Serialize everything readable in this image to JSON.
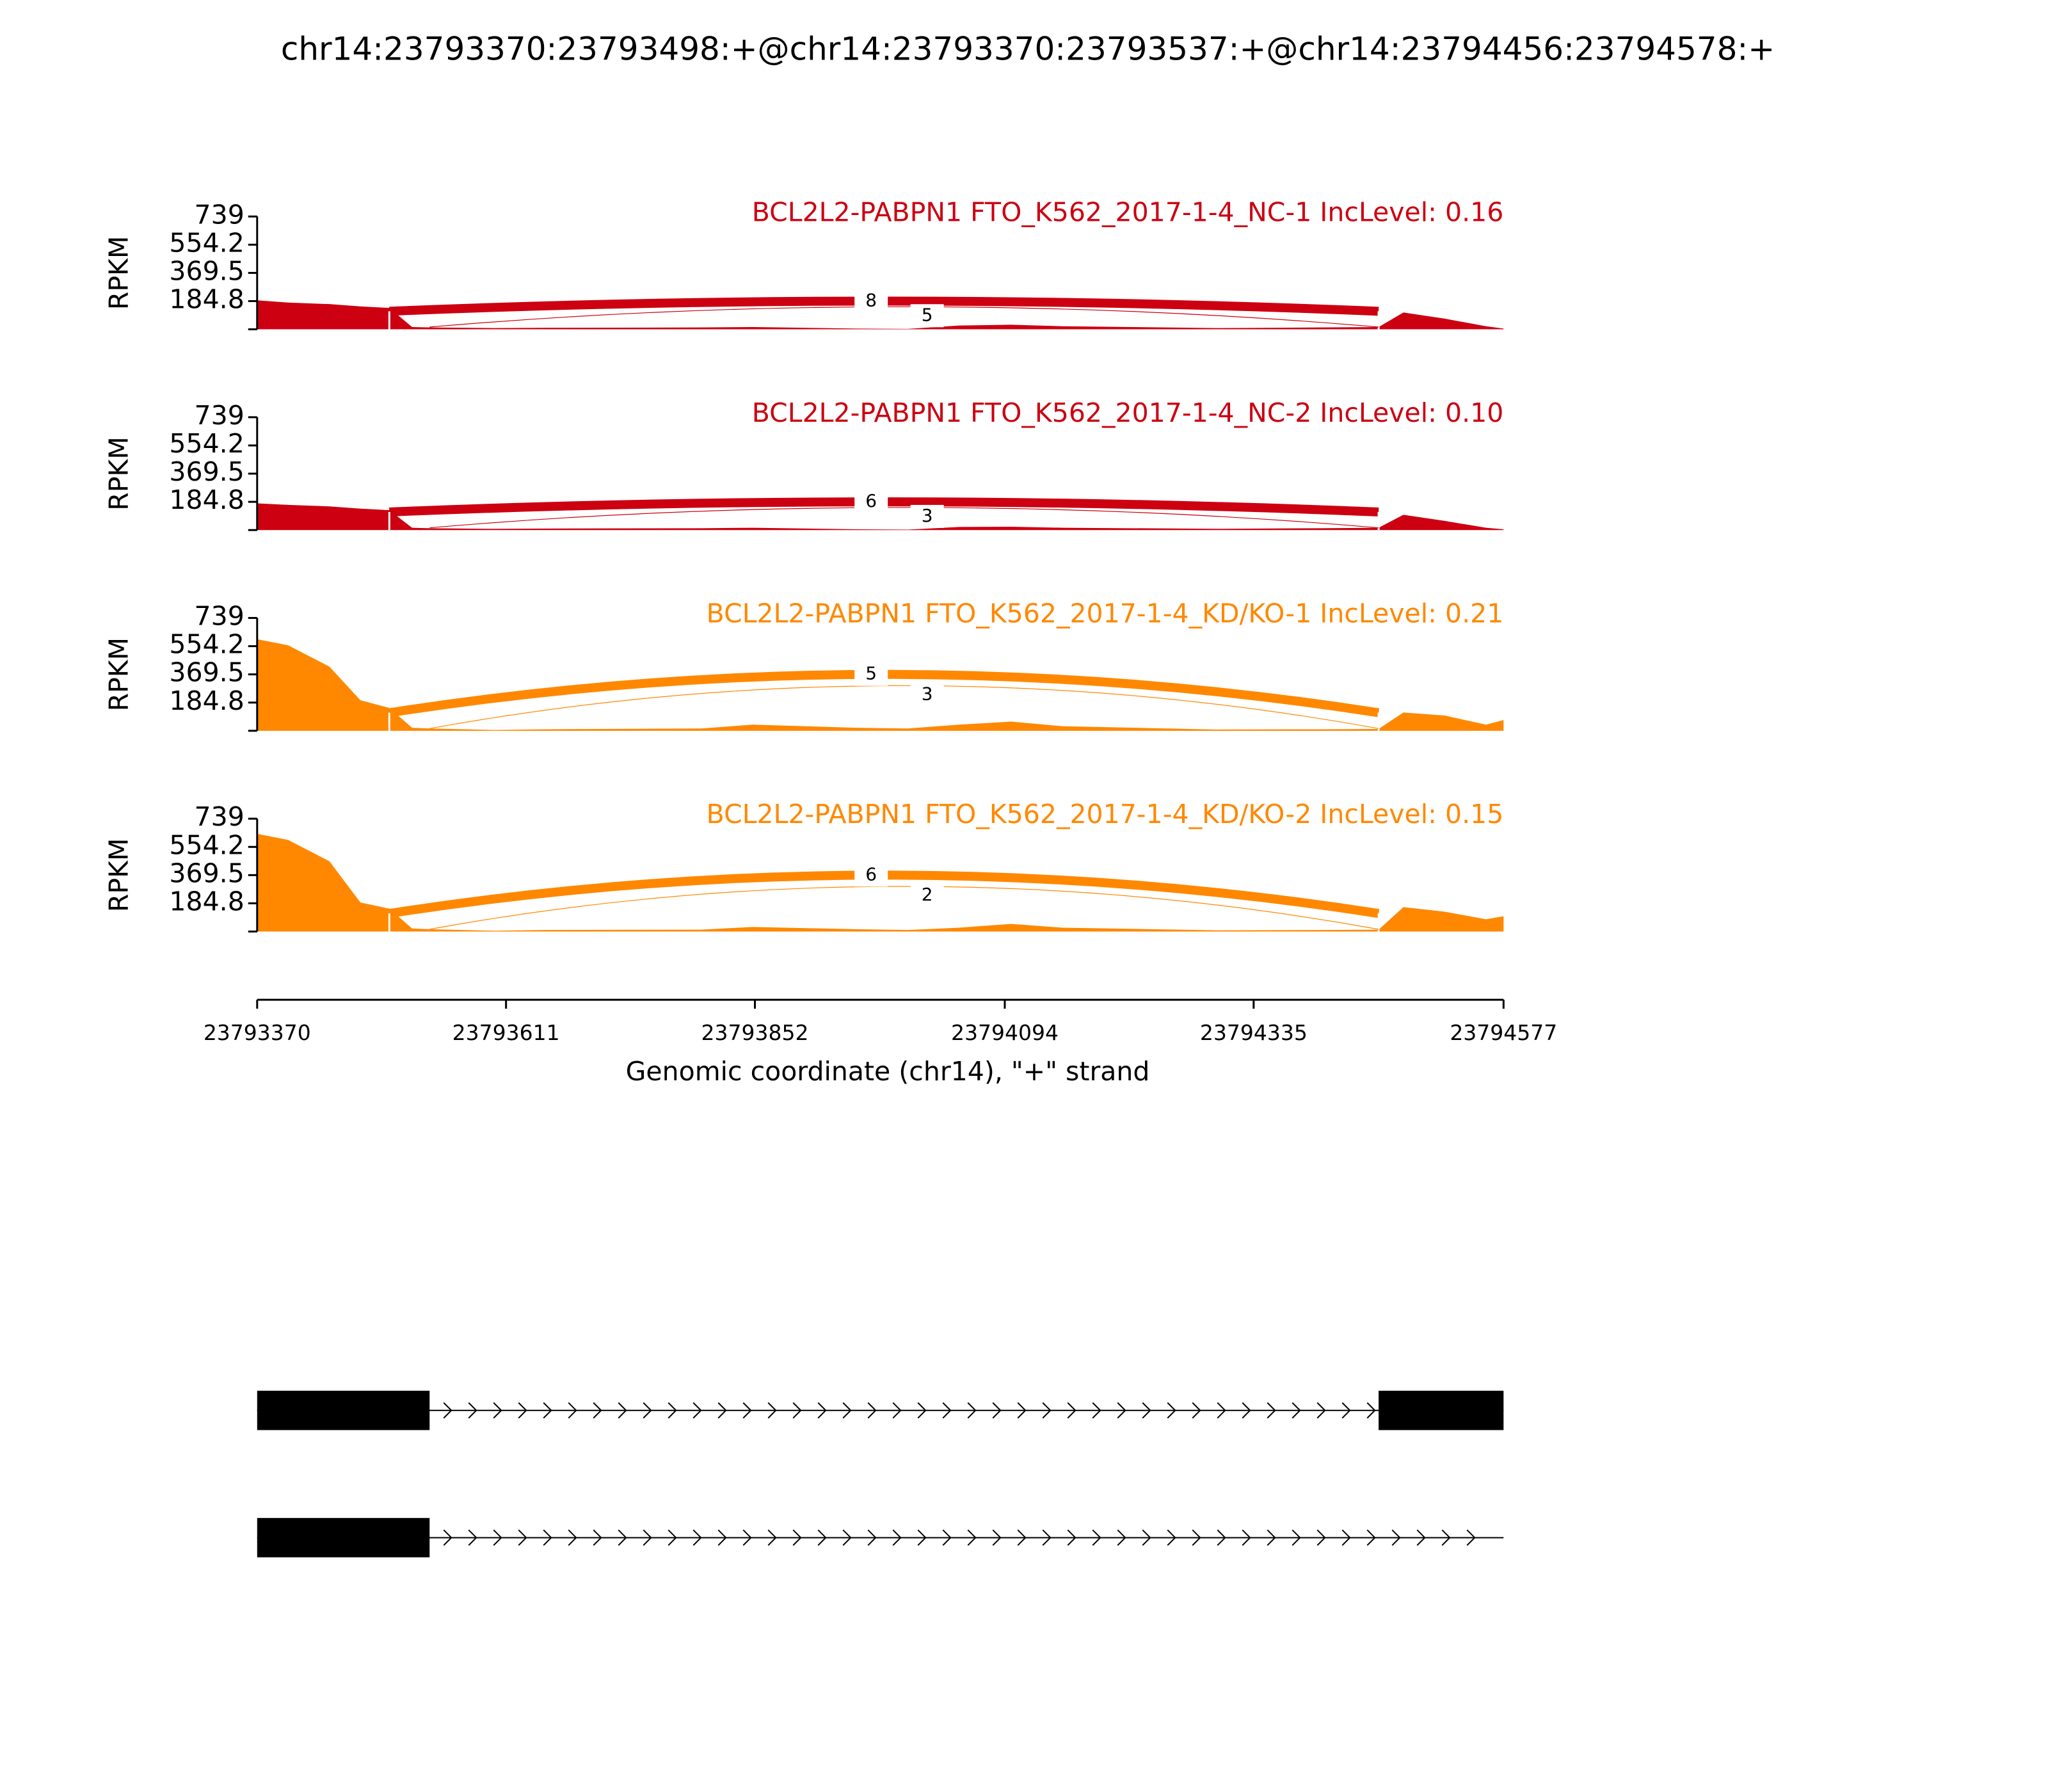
{
  "title": "chr14:23793370:23793498:+@chr14:23793370:23793537:+@chr14:23794456:23794578:+",
  "chart_data": [
    {
      "type": "area",
      "label": "BCL2L2-PABPN1 FTO_K562_2017-1-4_NC-1 IncLevel: 0.16",
      "color": "#cc0011",
      "ylabel": "RPKM",
      "ylim": [
        0,
        739
      ],
      "yticks": [
        184.8,
        369.5,
        554.2,
        739
      ],
      "x": [
        23793370,
        23793400,
        23793440,
        23793470,
        23793498,
        23793520,
        23793537,
        23793600,
        23793650,
        23793800,
        23793850,
        23793950,
        23794000,
        23794050,
        23794100,
        23794150,
        23794300,
        23794400,
        23794456,
        23794480,
        23794520,
        23794560,
        23794577
      ],
      "values": [
        190,
        175,
        165,
        150,
        140,
        15,
        12,
        8,
        10,
        12,
        15,
        5,
        3,
        25,
        30,
        20,
        8,
        12,
        15,
        110,
        70,
        20,
        5
      ],
      "junctions": [
        {
          "start": 23793498,
          "end": 23794456,
          "label": "8"
        },
        {
          "start": 23793537,
          "end": 23794456,
          "label": "5"
        }
      ]
    },
    {
      "type": "area",
      "label": "BCL2L2-PABPN1 FTO_K562_2017-1-4_NC-2 IncLevel: 0.10",
      "color": "#cc0011",
      "ylabel": "RPKM",
      "ylim": [
        0,
        739
      ],
      "yticks": [
        184.8,
        369.5,
        554.2,
        739
      ],
      "x": [
        23793370,
        23793400,
        23793440,
        23793470,
        23793498,
        23793520,
        23793537,
        23793600,
        23793650,
        23793800,
        23793850,
        23793950,
        23794000,
        23794050,
        23794100,
        23794150,
        23794300,
        23794400,
        23794456,
        23794480,
        23794520,
        23794560,
        23794577
      ],
      "values": [
        175,
        165,
        155,
        140,
        130,
        15,
        12,
        8,
        10,
        12,
        15,
        5,
        3,
        20,
        22,
        15,
        8,
        12,
        15,
        100,
        60,
        15,
        5
      ],
      "junctions": [
        {
          "start": 23793498,
          "end": 23794456,
          "label": "6"
        },
        {
          "start": 23793537,
          "end": 23794456,
          "label": "3"
        }
      ]
    },
    {
      "type": "area",
      "label": "BCL2L2-PABPN1 FTO_K562_2017-1-4_KD/KO-1 IncLevel: 0.21",
      "color": "#ff8800",
      "ylabel": "RPKM",
      "ylim": [
        0,
        739
      ],
      "yticks": [
        184.8,
        369.5,
        554.2,
        739
      ],
      "x": [
        23793370,
        23793400,
        23793440,
        23793470,
        23793498,
        23793520,
        23793537,
        23793600,
        23793650,
        23793800,
        23793850,
        23793950,
        23794000,
        23794050,
        23794100,
        23794150,
        23794300,
        23794400,
        23794456,
        23794480,
        23794520,
        23794560,
        23794577
      ],
      "values": [
        600,
        560,
        420,
        200,
        150,
        20,
        15,
        5,
        10,
        15,
        40,
        20,
        15,
        40,
        60,
        30,
        8,
        10,
        12,
        120,
        100,
        40,
        70
      ],
      "junctions": [
        {
          "start": 23793498,
          "end": 23794456,
          "label": "5"
        },
        {
          "start": 23793537,
          "end": 23794456,
          "label": "3"
        }
      ]
    },
    {
      "type": "area",
      "label": "BCL2L2-PABPN1 FTO_K562_2017-1-4_KD/KO-2 IncLevel: 0.15",
      "color": "#ff8800",
      "ylabel": "RPKM",
      "ylim": [
        0,
        739
      ],
      "yticks": [
        184.8,
        369.5,
        554.2,
        739
      ],
      "x": [
        23793370,
        23793400,
        23793440,
        23793470,
        23793498,
        23793520,
        23793537,
        23793600,
        23793650,
        23793800,
        23793850,
        23793950,
        23794000,
        23794050,
        23794100,
        23794150,
        23794300,
        23794400,
        23794456,
        23794480,
        23794520,
        23794560,
        23794577
      ],
      "values": [
        640,
        600,
        460,
        190,
        150,
        20,
        15,
        5,
        10,
        12,
        30,
        15,
        10,
        25,
        50,
        25,
        8,
        10,
        12,
        160,
        130,
        80,
        100
      ],
      "junctions": [
        {
          "start": 23793498,
          "end": 23794456,
          "label": "6"
        },
        {
          "start": 23793537,
          "end": 23794456,
          "label": "2"
        }
      ]
    }
  ],
  "x_axis": {
    "label": "Genomic coordinate (chr14), \"+\" strand",
    "xlim": [
      23793370,
      23794577
    ],
    "xticks": [
      23793370,
      23793611,
      23793852,
      23794094,
      23794335,
      23794577
    ]
  },
  "transcripts": [
    {
      "exons": [
        [
          23793370,
          23793537
        ],
        [
          23794456,
          23794577
        ]
      ]
    },
    {
      "exons": [
        [
          23793370,
          23793537
        ]
      ]
    }
  ]
}
